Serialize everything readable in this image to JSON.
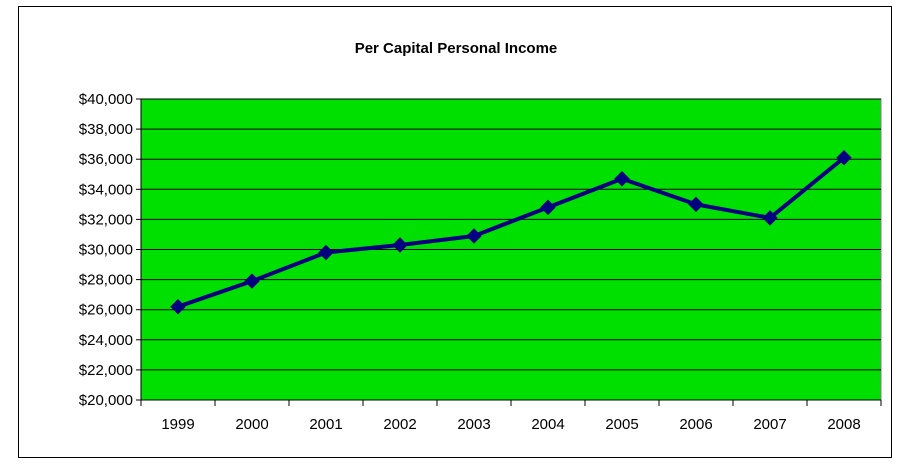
{
  "chart_data": {
    "type": "line",
    "title": "Per Capital Personal Income",
    "xlabel": "",
    "ylabel": "",
    "categories": [
      "1999",
      "2000",
      "2001",
      "2002",
      "2003",
      "2004",
      "2005",
      "2006",
      "2007",
      "2008"
    ],
    "series": [
      {
        "values": [
          26200,
          27900,
          29800,
          30300,
          30900,
          32800,
          34700,
          33000,
          32100,
          36100
        ],
        "color": "#000080",
        "marker": "diamond"
      }
    ],
    "ylim": [
      20000,
      40000
    ],
    "ytick_step": 2000,
    "ytick_labels": [
      "$20,000",
      "$22,000",
      "$24,000",
      "$26,000",
      "$28,000",
      "$30,000",
      "$32,000",
      "$34,000",
      "$36,000",
      "$38,000",
      "$40,000"
    ],
    "grid": true,
    "legend": "none",
    "plot_background": "#00e000"
  }
}
